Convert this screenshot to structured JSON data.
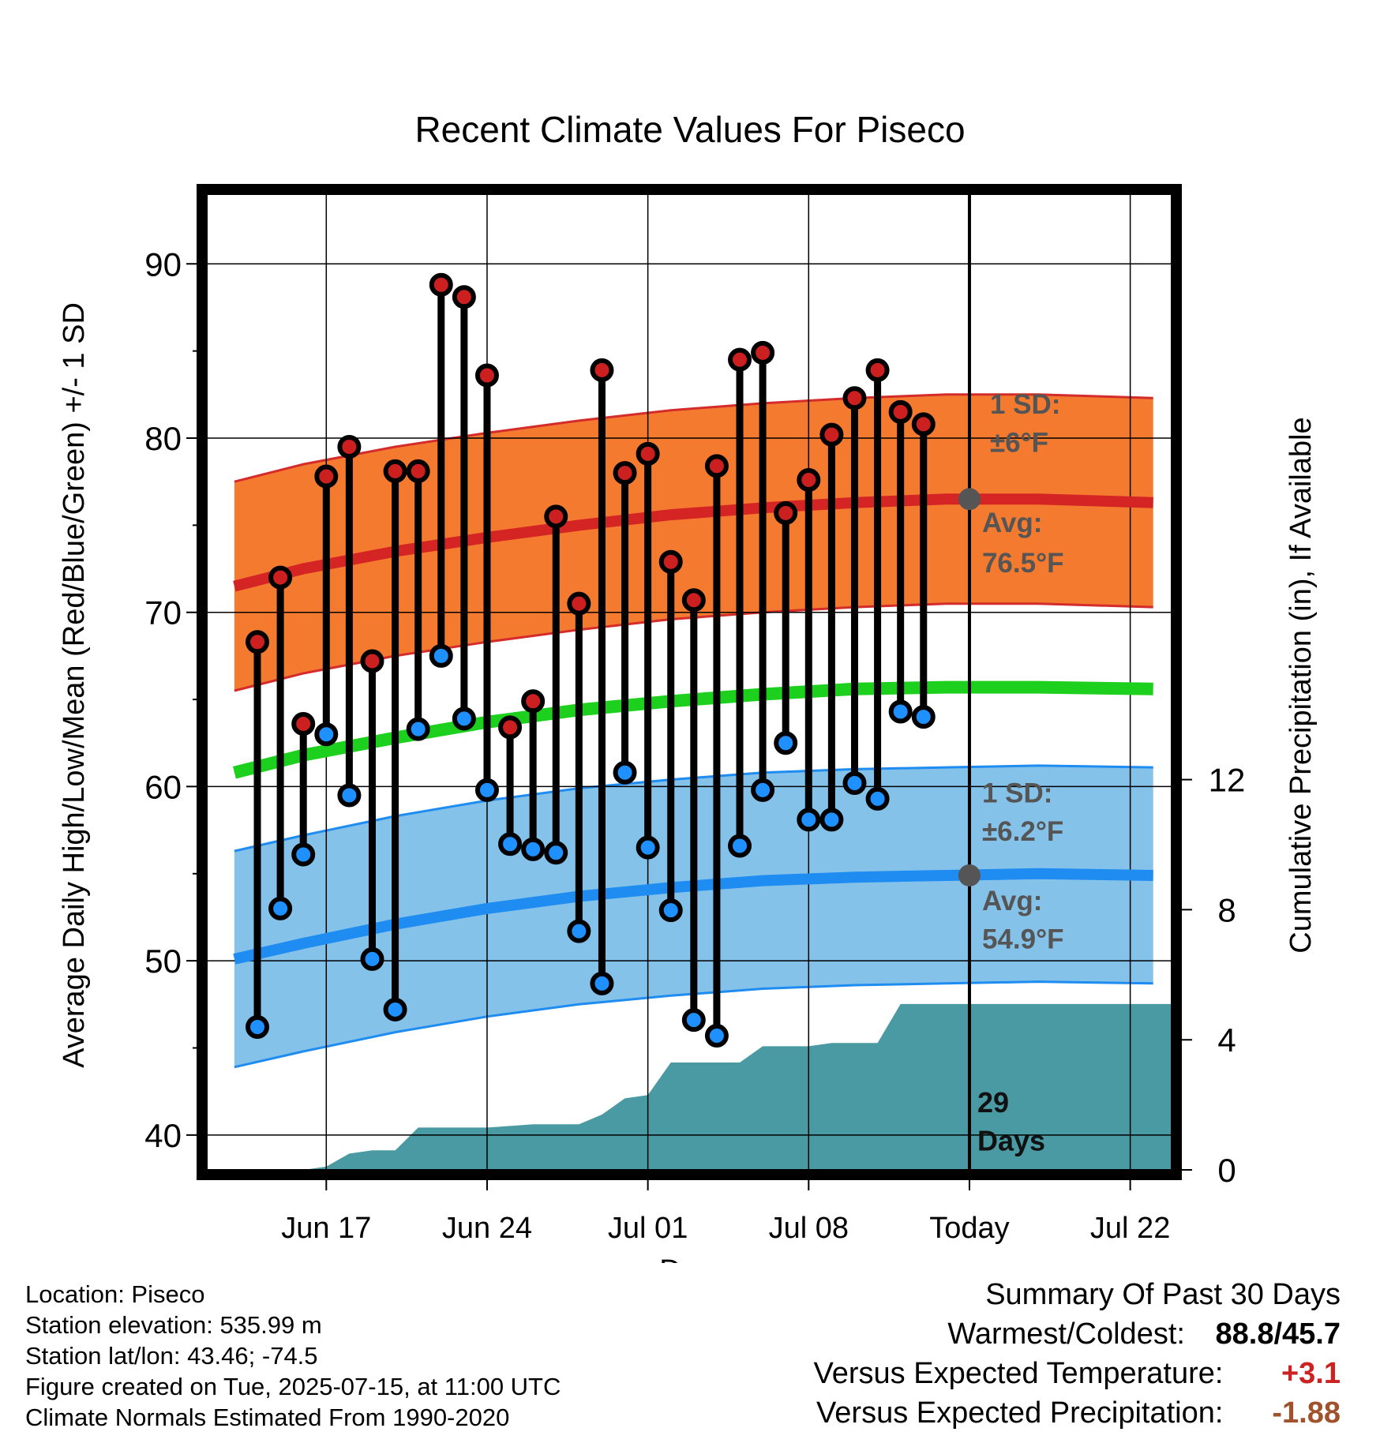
{
  "chart_data": {
    "type": "line",
    "title": "Recent Climate Values For Piseco",
    "xlabel": "Day",
    "ylabel": "Average Daily High/Low/Mean (Red/Blue/Green) +/- 1 SD",
    "y2label": "Cumulative Precipitation (in), If Available",
    "ylim": [
      38,
      94
    ],
    "y2lim": [
      0,
      30
    ],
    "xlim": [
      -4.2,
      37.8
    ],
    "x_ticks": [
      {
        "day": 1,
        "label": "Jun 17"
      },
      {
        "day": 8,
        "label": "Jun 24"
      },
      {
        "day": 15,
        "label": "Jul 01"
      },
      {
        "day": 22,
        "label": "Jul 08"
      },
      {
        "day": 29,
        "label": "Today"
      },
      {
        "day": 36,
        "label": "Jul 22"
      }
    ],
    "y_ticks": [
      40,
      50,
      60,
      70,
      80,
      90
    ],
    "y2_ticks": [
      0,
      4,
      8,
      12
    ],
    "grid": true,
    "today_day": 29,
    "normals": {
      "day": [
        -3,
        0,
        4,
        8,
        12,
        16,
        20,
        24,
        28,
        32,
        37
      ],
      "high_avg": [
        71.5,
        72.5,
        73.5,
        74.3,
        75.0,
        75.6,
        76.0,
        76.3,
        76.5,
        76.5,
        76.3
      ],
      "high_sd": 6,
      "low_avg": [
        50.1,
        51.0,
        52.1,
        53.0,
        53.7,
        54.2,
        54.6,
        54.8,
        54.9,
        55.0,
        54.9
      ],
      "low_sd": 6.2,
      "mean_avg": [
        60.8,
        61.8,
        62.8,
        63.7,
        64.4,
        64.9,
        65.3,
        65.6,
        65.7,
        65.7,
        65.6
      ]
    },
    "series": [
      {
        "name": "High",
        "color": "#cc1f1f",
        "x": [
          -2,
          -1,
          0,
          1,
          2,
          3,
          4,
          5,
          6,
          7,
          8,
          9,
          10,
          11,
          12,
          13,
          14,
          15,
          16,
          17,
          18,
          19,
          20,
          21,
          22,
          23,
          24,
          25,
          26,
          27,
          28
        ],
        "values": [
          68.3,
          72.0,
          63.6,
          77.8,
          79.5,
          67.2,
          78.1,
          78.1,
          88.8,
          88.1,
          83.6,
          63.4,
          64.9,
          75.5,
          70.5,
          83.9,
          78.0,
          79.1,
          72.9,
          70.7,
          78.4,
          84.5,
          84.9,
          75.7,
          77.6,
          80.2,
          82.3,
          83.9,
          81.5,
          80.8,
          null
        ]
      },
      {
        "name": "Low",
        "color": "#1e90ff",
        "x": [
          -2,
          -1,
          0,
          1,
          2,
          3,
          4,
          5,
          6,
          7,
          8,
          9,
          10,
          11,
          12,
          13,
          14,
          15,
          16,
          17,
          18,
          19,
          20,
          21,
          22,
          23,
          24,
          25,
          26,
          27,
          28
        ],
        "values": [
          46.2,
          53.0,
          56.1,
          63.0,
          59.5,
          50.1,
          47.2,
          63.3,
          67.5,
          63.9,
          59.8,
          56.7,
          56.4,
          56.2,
          51.7,
          48.7,
          60.8,
          56.5,
          52.9,
          46.6,
          45.7,
          56.6,
          59.8,
          62.5,
          58.1,
          58.1,
          60.2,
          59.3,
          64.3,
          64.0,
          null
        ]
      }
    ],
    "precip": {
      "day": [
        -4.2,
        -4.2,
        0,
        1,
        2,
        3,
        4,
        5,
        6,
        7,
        8,
        9,
        10,
        11,
        12,
        13,
        14,
        15,
        16,
        17,
        18,
        19,
        20,
        21,
        22,
        23,
        24,
        25,
        26,
        27,
        29,
        37.8
      ],
      "values": [
        0,
        0,
        0,
        0.1,
        0.5,
        0.6,
        0.6,
        1.3,
        1.3,
        1.3,
        1.3,
        1.35,
        1.4,
        1.4,
        1.4,
        1.7,
        2.2,
        2.3,
        3.3,
        3.3,
        3.3,
        3.3,
        3.8,
        3.8,
        3.8,
        3.9,
        3.9,
        3.9,
        5.1,
        5.1,
        5.1,
        5.1
      ]
    },
    "annotations": {
      "high_sd_label": "1 SD:",
      "high_sd_value": "±6°F",
      "high_avg_label": "Avg:",
      "high_avg_value": "76.5°F",
      "low_sd_label": "1 SD:",
      "low_sd_value": "±6.2°F",
      "low_avg_label": "Avg:",
      "low_avg_value": "54.9°F",
      "days_count": "29",
      "days_label": "Days"
    }
  },
  "footer": {
    "location": "Location: Piseco",
    "elevation": "Station elevation: 535.99 m",
    "latlon": "Station lat/lon: 43.46; -74.5",
    "created": "Figure created on Tue, 2025-07-15, at 11:00 UTC",
    "normals": "Climate Normals Estimated From 1990-2020"
  },
  "summary": {
    "title": "Summary Of Past 30 Days",
    "warmest_label": "Warmest/Coldest:",
    "warmest_value": "88.8/45.7",
    "temp_label": "Versus Expected Temperature:",
    "temp_value": "+3.1",
    "temp_color": "#cc2222",
    "precip_label": "Versus Expected Precipitation:",
    "precip_value": "-1.88",
    "precip_color": "#a0522d"
  }
}
